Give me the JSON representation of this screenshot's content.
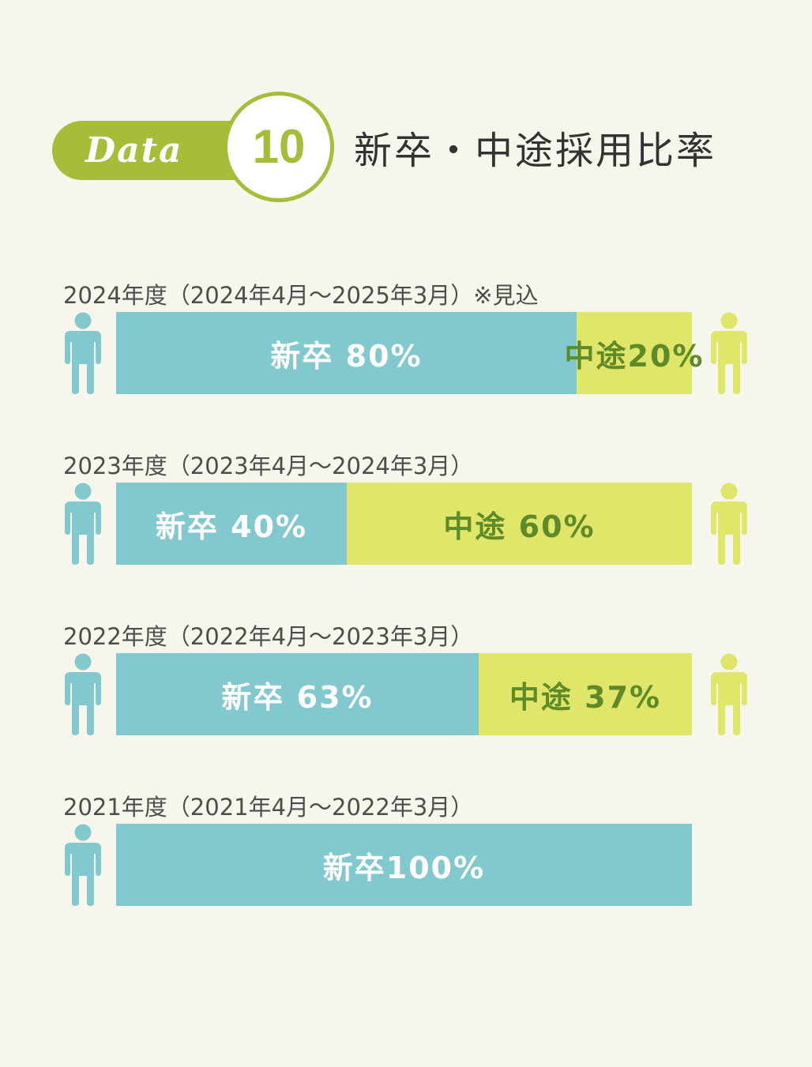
{
  "header": {
    "badge_word": "Data",
    "badge_number": "10",
    "title": "新卒・中途採用比率"
  },
  "colors": {
    "shinsotsu": "#82c8cf",
    "chuto": "#dfe66a",
    "chuto_text": "#5f8a28",
    "accent": "#a7bd39",
    "background": "#f6f6ec"
  },
  "icons": {
    "shinsotsu": "person-icon",
    "chuto": "person-icon"
  },
  "chart_data": {
    "type": "bar",
    "stacked": true,
    "orientation": "horizontal",
    "unit": "%",
    "categories": [
      "2024年度（2024年4月〜2025年3月）※見込",
      "2023年度（2023年4月〜2024年3月）",
      "2022年度（2022年4月〜2023年3月）",
      "2021年度（2021年4月〜2022年3月）"
    ],
    "series": [
      {
        "name": "新卒",
        "values": [
          80,
          40,
          63,
          100
        ]
      },
      {
        "name": "中途",
        "values": [
          20,
          60,
          37,
          0
        ]
      }
    ],
    "rows": [
      {
        "label": "2024年度（2024年4月〜2025年3月）※見込",
        "shinsotsu": 80,
        "chuto": 20,
        "shinsotsu_label": "新卒 80%",
        "chuto_label": "中途20%"
      },
      {
        "label": "2023年度（2023年4月〜2024年3月）",
        "shinsotsu": 40,
        "chuto": 60,
        "shinsotsu_label": "新卒 40%",
        "chuto_label": "中途 60%"
      },
      {
        "label": "2022年度（2022年4月〜2023年3月）",
        "shinsotsu": 63,
        "chuto": 37,
        "shinsotsu_label": "新卒 63%",
        "chuto_label": "中途 37%"
      },
      {
        "label": "2021年度（2021年4月〜2022年3月）",
        "shinsotsu": 100,
        "chuto": 0,
        "shinsotsu_label": "新卒100%",
        "chuto_label": ""
      }
    ]
  }
}
